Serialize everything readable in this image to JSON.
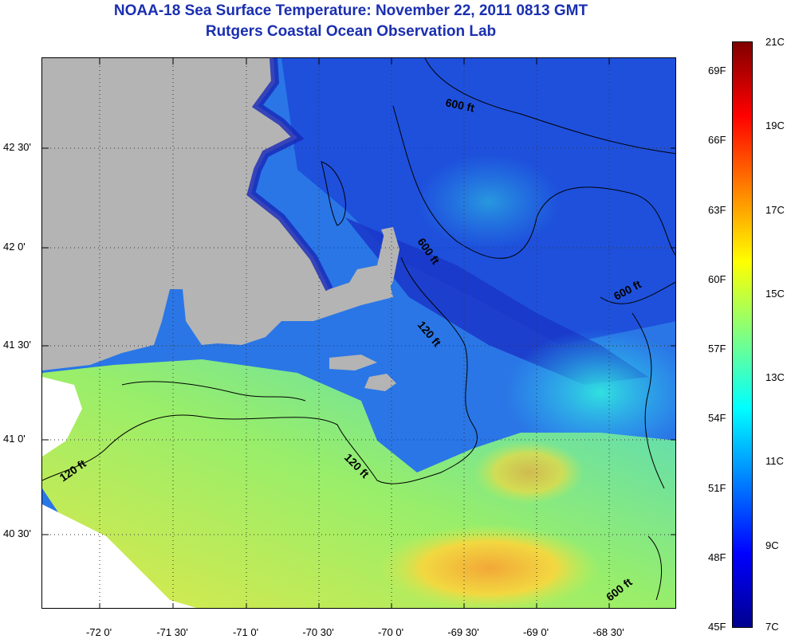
{
  "title": {
    "line1": "NOAA-18 Sea Surface Temperature:  November 22, 2011 0813 GMT",
    "line2": "Rutgers Coastal Ocean Observation Lab"
  },
  "map": {
    "lat_labels": [
      "42 30'",
      "42 0'",
      "41 30'",
      "41 0'",
      "40 30'"
    ],
    "lon_labels": [
      "-72 0'",
      "-71 30'",
      "-71 0'",
      "-70 30'",
      "-70 0'",
      "-69 30'",
      "-69 0'",
      "-68 30'"
    ],
    "contour_labels": [
      "600 ft",
      "600 ft",
      "600 ft",
      "120 ft",
      "120 ft",
      "120 ft",
      "600 ft"
    ],
    "colors": {
      "land": "#b0b0b0",
      "no_data": "#ffffff",
      "cold_water": "#1a3fd8",
      "warm_water": "#e8e23a"
    }
  },
  "colorbar": {
    "fahrenheit_labels": [
      "69F",
      "66F",
      "63F",
      "60F",
      "57F",
      "54F",
      "51F",
      "48F",
      "45F"
    ],
    "celsius_labels": [
      "21C",
      "19C",
      "17C",
      "15C",
      "13C",
      "11C",
      "9C",
      "7C"
    ],
    "colormap": [
      "#00008f",
      "#0000ff",
      "#0080ff",
      "#00ffff",
      "#80ff80",
      "#ffff00",
      "#ff8000",
      "#ff0000",
      "#800000"
    ]
  }
}
